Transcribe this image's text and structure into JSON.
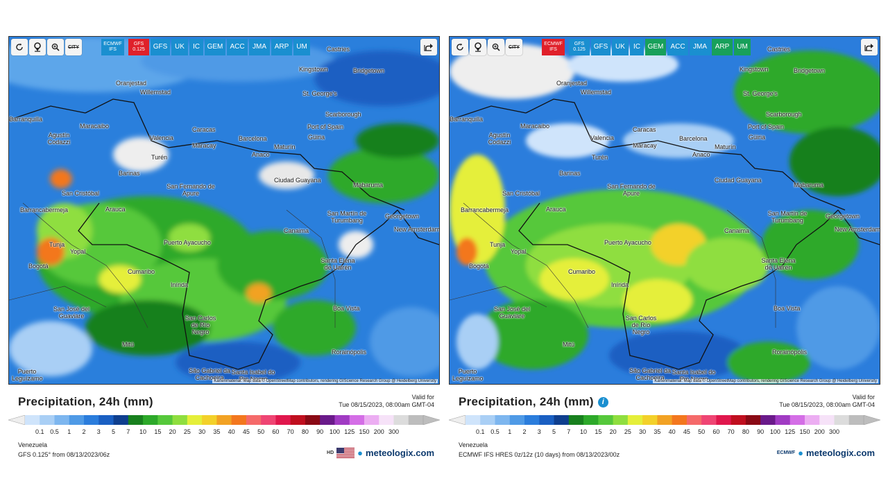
{
  "panels": [
    {
      "id": "gfs",
      "toolbar": {
        "city_label": "CITY",
        "tabs": [
          {
            "label": "ECMWF\nIFS",
            "active": false
          },
          {
            "label": "GFS\n0.125",
            "active": true
          },
          {
            "label": "GFS",
            "active": false
          },
          {
            "label": "UK",
            "active": false
          },
          {
            "label": "IC",
            "active": false
          },
          {
            "label": "GEM",
            "active": false
          },
          {
            "label": "ACC",
            "active": false
          },
          {
            "label": "JMA",
            "active": false
          },
          {
            "label": "ARP",
            "active": false
          },
          {
            "label": "UM",
            "active": false
          }
        ]
      },
      "title": "Precipitation, 24h (mm)",
      "show_info_icon": false,
      "valid_label": "Valid for",
      "valid_time": "Tue 08/15/2023, 08:00am GMT-04",
      "region": "Venezuela",
      "model_run": "GFS 0.125° from 08/13/2023/06z",
      "brand_prefix": "HD",
      "brand": "meteologix.com"
    },
    {
      "id": "ecmwf",
      "toolbar": {
        "city_label": "CITY",
        "tabs": [
          {
            "label": "ECMWF\nIFS",
            "active": true
          },
          {
            "label": "GFS\n0.125",
            "active": false
          },
          {
            "label": "GFS",
            "active": false
          },
          {
            "label": "UK",
            "active": false
          },
          {
            "label": "IC",
            "active": false
          },
          {
            "label": "GEM",
            "active": false
          },
          {
            "label": "ACC",
            "active": false
          },
          {
            "label": "JMA",
            "active": false
          },
          {
            "label": "ARP",
            "active": false
          },
          {
            "label": "UM",
            "active": false
          }
        ]
      },
      "title": "Precipitation, 24h (mm)",
      "show_info_icon": true,
      "valid_label": "Valid for",
      "valid_time": "Tue 08/15/2023, 08:00am GMT-04",
      "region": "Venezuela",
      "model_run": "ECMWF IFS HRES 0z/12z (10 days) from 08/13/2023/00z",
      "brand_prefix": "ECMWF",
      "brand": "meteologix.com"
    }
  ],
  "attribution": "Kartenmaterial: Map data © OpenStreetMap contributors, rendering GIScience Research Group @ Heidelberg University",
  "cities": [
    {
      "name": "Castries"
    },
    {
      "name": "Kingstown"
    },
    {
      "name": "Bridgetown"
    },
    {
      "name": "Oranjestad"
    },
    {
      "name": "Willemstad"
    },
    {
      "name": "St. George's"
    },
    {
      "name": "Scarborough"
    },
    {
      "name": "Barranquilla"
    },
    {
      "name": "Maracaibo"
    },
    {
      "name": "Caracas"
    },
    {
      "name": "Port of Spain"
    },
    {
      "name": "Agustín Codazzi"
    },
    {
      "name": "Valencia"
    },
    {
      "name": "Barcelona"
    },
    {
      "name": "Güiria"
    },
    {
      "name": "Maracay"
    },
    {
      "name": "Maturín"
    },
    {
      "name": "Turén"
    },
    {
      "name": "Anaco"
    },
    {
      "name": "Barinas"
    },
    {
      "name": "Ciudad Guayana"
    },
    {
      "name": "Mabaruma"
    },
    {
      "name": "San Fernando de Apure"
    },
    {
      "name": "San Cristóbal"
    },
    {
      "name": "Barrancabermeja"
    },
    {
      "name": "Arauca"
    },
    {
      "name": "San Martín de Turumbang"
    },
    {
      "name": "Georgetown"
    },
    {
      "name": "New Amsterdam"
    },
    {
      "name": "Canaima"
    },
    {
      "name": "Tunja"
    },
    {
      "name": "Yopal"
    },
    {
      "name": "Puerto Ayacucho"
    },
    {
      "name": "Bogotá"
    },
    {
      "name": "Cumaribo"
    },
    {
      "name": "Santa Elena de Uairén"
    },
    {
      "name": "Inírida"
    },
    {
      "name": "San José del Guaviare"
    },
    {
      "name": "Boa Vista"
    },
    {
      "name": "San Carlos de Río Negro"
    },
    {
      "name": "Mitú"
    },
    {
      "name": "Rorainópolis"
    },
    {
      "name": "São Gabriel da Cachoeira"
    },
    {
      "name": "Santa Isabel do Rio Negro"
    },
    {
      "name": "Puerto Leguízamo"
    }
  ],
  "legend": {
    "ticks": [
      "0.1",
      "0.5",
      "1",
      "2",
      "3",
      "5",
      "7",
      "10",
      "15",
      "20",
      "25",
      "30",
      "35",
      "40",
      "45",
      "50",
      "60",
      "70",
      "80",
      "90",
      "100",
      "125",
      "150",
      "200",
      "300"
    ],
    "colors": [
      "#cfe4fb",
      "#a9cff5",
      "#7db6ef",
      "#4f9ae6",
      "#2b7ddc",
      "#1a5fc2",
      "#0f3f8e",
      "#18801e",
      "#2da92a",
      "#56c83b",
      "#8fde3f",
      "#e5ef3a",
      "#f3d12a",
      "#f2a224",
      "#f3771e",
      "#f56a6a",
      "#ef4573",
      "#e0174d",
      "#c00f1f",
      "#8a0a15",
      "#6a1a8a",
      "#a03bc3",
      "#d46ee6",
      "#ecadf2",
      "#f6e2f8",
      "#dcdcdc",
      "#bdbdbd"
    ]
  }
}
